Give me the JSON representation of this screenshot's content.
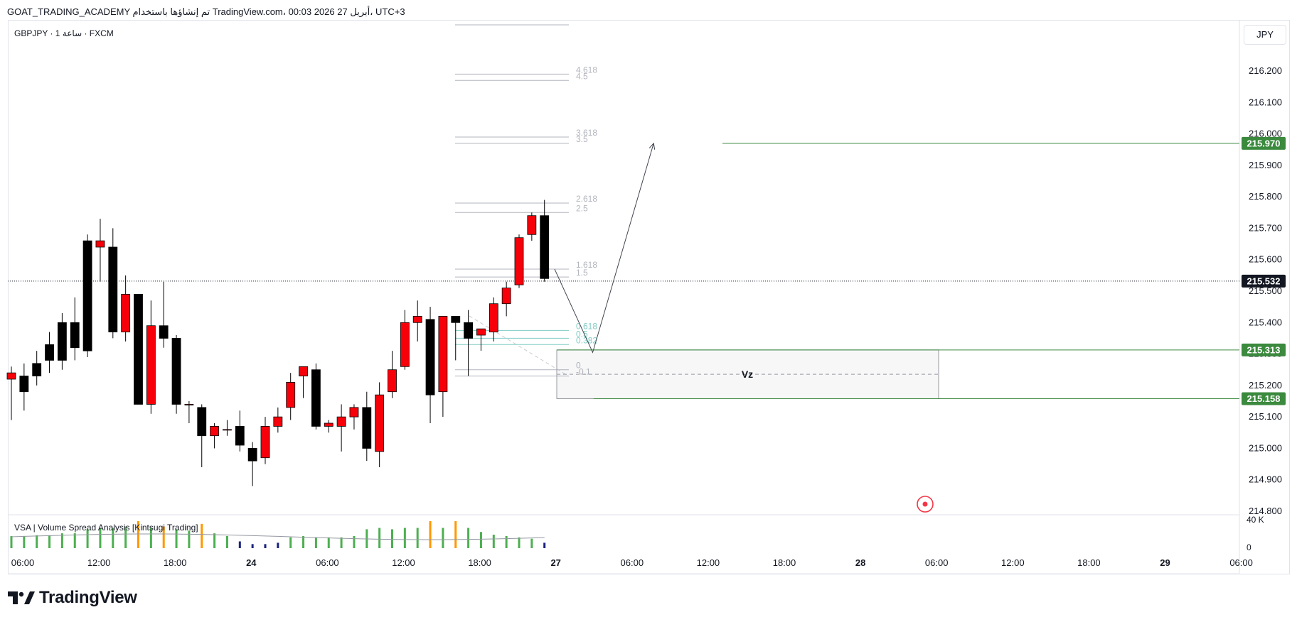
{
  "header": {
    "text": "GOAT_TRADING_ACADEMY تم إنشاؤها باستخدام TradingView.com، 00:03 2026 أبريل 27، UTC+3"
  },
  "symbol": {
    "text": "GBPJPY · 1 ساعة · FXCM"
  },
  "currency": {
    "label": "JPY"
  },
  "indicator": {
    "label": "VSA | Volume Spread Analysis [Kintsugi Trading]"
  },
  "footer": {
    "brand": "TradingView"
  },
  "colors": {
    "bull": "#f7000a",
    "bear": "#000000",
    "green": "#3b8a3e",
    "vol_green": "#4caf50",
    "vol_orange": "#ff9800",
    "vol_navy": "#1a237e",
    "fib_gray": "#b2b5be",
    "fib_teal": "#80cbc4",
    "price_tag_dark": "#131722"
  },
  "chart_data": {
    "type": "candlestick",
    "symbol": "GBPJPY",
    "timeframe": "1",
    "ylim": [
      214.8,
      216.2
    ],
    "y_ticks": [
      "216.200",
      "216.100",
      "216.000",
      "215.900",
      "215.800",
      "215.700",
      "215.600",
      "215.500",
      "215.400",
      "215.300",
      "215.200",
      "215.100",
      "215.000",
      "214.900",
      "214.800"
    ],
    "x_ticks": [
      "06:00",
      "12:00",
      "18:00",
      "24",
      "06:00",
      "12:00",
      "18:00",
      "27",
      "06:00",
      "12:00",
      "18:00",
      "28",
      "06:00",
      "12:00",
      "18:00",
      "29",
      "06:00"
    ],
    "candles": [
      {
        "o": 215.22,
        "h": 215.26,
        "l": 215.09,
        "c": 215.24
      },
      {
        "o": 215.23,
        "h": 215.27,
        "l": 215.12,
        "c": 215.18
      },
      {
        "o": 215.27,
        "h": 215.31,
        "l": 215.2,
        "c": 215.23
      },
      {
        "o": 215.33,
        "h": 215.37,
        "l": 215.24,
        "c": 215.28
      },
      {
        "o": 215.4,
        "h": 215.43,
        "l": 215.25,
        "c": 215.28
      },
      {
        "o": 215.4,
        "h": 215.48,
        "l": 215.28,
        "c": 215.32
      },
      {
        "o": 215.66,
        "h": 215.68,
        "l": 215.29,
        "c": 215.31
      },
      {
        "o": 215.64,
        "h": 215.73,
        "l": 215.53,
        "c": 215.66
      },
      {
        "o": 215.64,
        "h": 215.7,
        "l": 215.35,
        "c": 215.37
      },
      {
        "o": 215.37,
        "h": 215.55,
        "l": 215.34,
        "c": 215.49
      },
      {
        "o": 215.49,
        "h": 215.49,
        "l": 215.14,
        "c": 215.14
      },
      {
        "o": 215.14,
        "h": 215.47,
        "l": 215.11,
        "c": 215.39
      },
      {
        "o": 215.39,
        "h": 215.53,
        "l": 215.32,
        "c": 215.35
      },
      {
        "o": 215.35,
        "h": 215.36,
        "l": 215.11,
        "c": 215.14
      },
      {
        "o": 215.14,
        "h": 215.15,
        "l": 215.08,
        "c": 215.14
      },
      {
        "o": 215.13,
        "h": 215.14,
        "l": 214.94,
        "c": 215.04
      },
      {
        "o": 215.04,
        "h": 215.08,
        "l": 215.0,
        "c": 215.07
      },
      {
        "o": 215.06,
        "h": 215.09,
        "l": 215.04,
        "c": 215.06
      },
      {
        "o": 215.07,
        "h": 215.12,
        "l": 214.99,
        "c": 215.01
      },
      {
        "o": 215.0,
        "h": 215.02,
        "l": 214.88,
        "c": 214.96
      },
      {
        "o": 214.97,
        "h": 215.1,
        "l": 214.95,
        "c": 215.07
      },
      {
        "o": 215.07,
        "h": 215.13,
        "l": 215.05,
        "c": 215.1
      },
      {
        "o": 215.13,
        "h": 215.24,
        "l": 215.09,
        "c": 215.21
      },
      {
        "o": 215.23,
        "h": 215.26,
        "l": 215.16,
        "c": 215.26
      },
      {
        "o": 215.25,
        "h": 215.27,
        "l": 215.06,
        "c": 215.07
      },
      {
        "o": 215.07,
        "h": 215.09,
        "l": 215.05,
        "c": 215.08
      },
      {
        "o": 215.07,
        "h": 215.14,
        "l": 214.99,
        "c": 215.1
      },
      {
        "o": 215.1,
        "h": 215.14,
        "l": 215.06,
        "c": 215.13
      },
      {
        "o": 215.13,
        "h": 215.18,
        "l": 214.96,
        "c": 215.0
      },
      {
        "o": 214.99,
        "h": 215.21,
        "l": 214.94,
        "c": 215.17
      },
      {
        "o": 215.18,
        "h": 215.31,
        "l": 215.16,
        "c": 215.25
      },
      {
        "o": 215.26,
        "h": 215.44,
        "l": 215.25,
        "c": 215.4
      },
      {
        "o": 215.4,
        "h": 215.47,
        "l": 215.34,
        "c": 215.42
      },
      {
        "o": 215.41,
        "h": 215.45,
        "l": 215.08,
        "c": 215.17
      },
      {
        "o": 215.18,
        "h": 215.42,
        "l": 215.1,
        "c": 215.42
      },
      {
        "o": 215.42,
        "h": 215.42,
        "l": 215.28,
        "c": 215.4
      },
      {
        "o": 215.4,
        "h": 215.44,
        "l": 215.23,
        "c": 215.35
      },
      {
        "o": 215.36,
        "h": 215.38,
        "l": 215.31,
        "c": 215.38
      },
      {
        "o": 215.37,
        "h": 215.48,
        "l": 215.34,
        "c": 215.46
      },
      {
        "o": 215.46,
        "h": 215.53,
        "l": 215.42,
        "c": 215.51
      },
      {
        "o": 215.52,
        "h": 215.68,
        "l": 215.51,
        "c": 215.67
      },
      {
        "o": 215.68,
        "h": 215.75,
        "l": 215.66,
        "c": 215.74
      },
      {
        "o": 215.74,
        "h": 215.79,
        "l": 215.53,
        "c": 215.54
      }
    ],
    "volume": [
      {
        "v": 0.45,
        "c": "green"
      },
      {
        "v": 0.45,
        "c": "green"
      },
      {
        "v": 0.48,
        "c": "green"
      },
      {
        "v": 0.48,
        "c": "green"
      },
      {
        "v": 0.55,
        "c": "green"
      },
      {
        "v": 0.55,
        "c": "green"
      },
      {
        "v": 0.7,
        "c": "green"
      },
      {
        "v": 0.75,
        "c": "green"
      },
      {
        "v": 0.75,
        "c": "green"
      },
      {
        "v": 0.8,
        "c": "green"
      },
      {
        "v": 1.0,
        "c": "orange"
      },
      {
        "v": 0.75,
        "c": "green"
      },
      {
        "v": 0.8,
        "c": "orange"
      },
      {
        "v": 0.7,
        "c": "green"
      },
      {
        "v": 0.65,
        "c": "green"
      },
      {
        "v": 0.9,
        "c": "orange"
      },
      {
        "v": 0.55,
        "c": "green"
      },
      {
        "v": 0.45,
        "c": "green"
      },
      {
        "v": 0.25,
        "c": "navy"
      },
      {
        "v": 0.15,
        "c": "navy"
      },
      {
        "v": 0.15,
        "c": "navy"
      },
      {
        "v": 0.2,
        "c": "navy"
      },
      {
        "v": 0.4,
        "c": "green"
      },
      {
        "v": 0.45,
        "c": "green"
      },
      {
        "v": 0.4,
        "c": "green"
      },
      {
        "v": 0.4,
        "c": "green"
      },
      {
        "v": 0.4,
        "c": "green"
      },
      {
        "v": 0.45,
        "c": "green"
      },
      {
        "v": 0.7,
        "c": "green"
      },
      {
        "v": 0.75,
        "c": "green"
      },
      {
        "v": 0.7,
        "c": "green"
      },
      {
        "v": 0.75,
        "c": "green"
      },
      {
        "v": 0.75,
        "c": "green"
      },
      {
        "v": 1.0,
        "c": "orange"
      },
      {
        "v": 0.75,
        "c": "green"
      },
      {
        "v": 1.0,
        "c": "orange"
      },
      {
        "v": 0.75,
        "c": "green"
      },
      {
        "v": 0.6,
        "c": "green"
      },
      {
        "v": 0.5,
        "c": "green"
      },
      {
        "v": 0.45,
        "c": "green"
      },
      {
        "v": 0.4,
        "c": "green"
      },
      {
        "v": 0.35,
        "c": "green"
      },
      {
        "v": 0.2,
        "c": "navy"
      }
    ],
    "volume_axis": [
      "40 K",
      "0"
    ],
    "current_price": "215.532",
    "price_tags": [
      {
        "label": "215.970",
        "value": 215.97
      },
      {
        "label": "215.313",
        "value": 215.313
      },
      {
        "label": "215.158",
        "value": 215.158
      }
    ],
    "fib_levels": [
      {
        "label": "4.618",
        "value": 216.19,
        "teal": false
      },
      {
        "label": "4.5",
        "value": 216.17,
        "teal": false
      },
      {
        "label": "3.618",
        "value": 215.99,
        "teal": false
      },
      {
        "label": "3.5",
        "value": 215.97,
        "teal": false
      },
      {
        "label": "2.618",
        "value": 215.78,
        "teal": false
      },
      {
        "label": "2.5",
        "value": 215.75,
        "teal": false
      },
      {
        "label": "1.618",
        "value": 215.57,
        "teal": false
      },
      {
        "label": "1.5",
        "value": 215.545,
        "teal": false
      },
      {
        "label": "0.618",
        "value": 215.375,
        "teal": true
      },
      {
        "label": "0.5",
        "value": 215.35,
        "teal": true
      },
      {
        "label": "0.382",
        "value": 215.33,
        "teal": true
      },
      {
        "label": "0",
        "value": 215.25,
        "teal": false
      },
      {
        "label": "-0.1",
        "value": 215.23,
        "teal": false
      }
    ],
    "zone": {
      "label": "Vz",
      "top": 215.313,
      "bottom": 215.158
    },
    "projection": [
      {
        "t": 42.8,
        "p": 215.57
      },
      {
        "t": 45.8,
        "p": 215.305
      },
      {
        "t": 50.6,
        "p": 215.97
      }
    ]
  }
}
